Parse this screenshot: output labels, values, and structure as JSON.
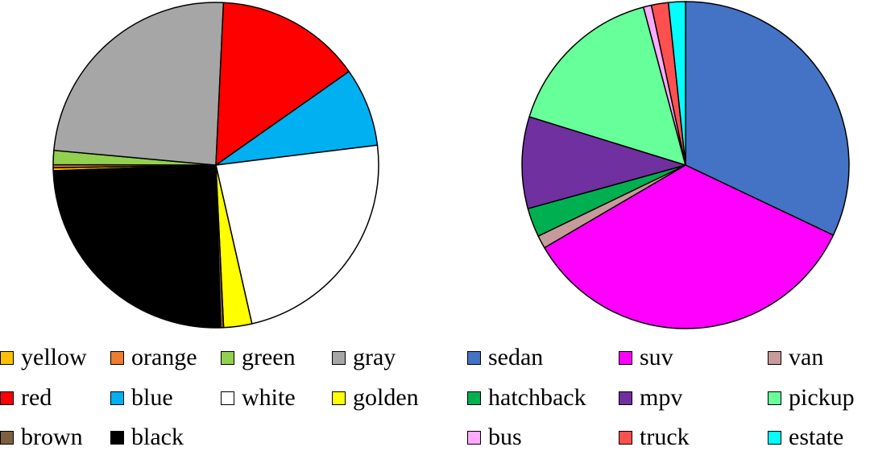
{
  "chart_data": [
    {
      "type": "pie",
      "title": "",
      "slices": [
        {
          "label": "yellow",
          "value": 0.3,
          "color": "#FFC000"
        },
        {
          "label": "orange",
          "value": 0.3,
          "color": "#ED7D31"
        },
        {
          "label": "green",
          "value": 1.4,
          "color": "#92D050"
        },
        {
          "label": "gray",
          "value": 24.3,
          "color": "#A6A6A6"
        },
        {
          "label": "red",
          "value": 14.5,
          "color": "#FF0000"
        },
        {
          "label": "blue",
          "value": 7.8,
          "color": "#00B0F0"
        },
        {
          "label": "white",
          "value": 23.4,
          "color": "#FFFFFF"
        },
        {
          "label": "golden",
          "value": 2.8,
          "color": "#FFFF00"
        },
        {
          "label": "brown",
          "value": 0.3,
          "color": "#7F5F3F"
        },
        {
          "label": "black",
          "value": 24.9,
          "color": "#000000"
        }
      ],
      "legend": [
        "yellow",
        "orange",
        "green",
        "gray",
        "red",
        "blue",
        "white",
        "golden",
        "brown",
        "black"
      ],
      "legend_position": "bottom"
    },
    {
      "type": "pie",
      "title": "",
      "slices": [
        {
          "label": "sedan",
          "value": 32.5,
          "color": "#4472C4"
        },
        {
          "label": "suv",
          "value": 35.0,
          "color": "#FF00FF"
        },
        {
          "label": "van",
          "value": 1.3,
          "color": "#C89B9B"
        },
        {
          "label": "hatchback",
          "value": 2.9,
          "color": "#00B050"
        },
        {
          "label": "mpv",
          "value": 9.2,
          "color": "#7030A0"
        },
        {
          "label": "pickup",
          "value": 16.3,
          "color": "#66FF99"
        },
        {
          "label": "bus",
          "value": 0.8,
          "color": "#FFAAFF"
        },
        {
          "label": "truck",
          "value": 1.7,
          "color": "#FF5050"
        },
        {
          "label": "estate",
          "value": 1.7,
          "color": "#00FFFF"
        }
      ],
      "legend": [
        "sedan",
        "suv",
        "van",
        "hatchback",
        "mpv",
        "pickup",
        "bus",
        "truck",
        "estate"
      ],
      "legend_position": "bottom"
    }
  ]
}
